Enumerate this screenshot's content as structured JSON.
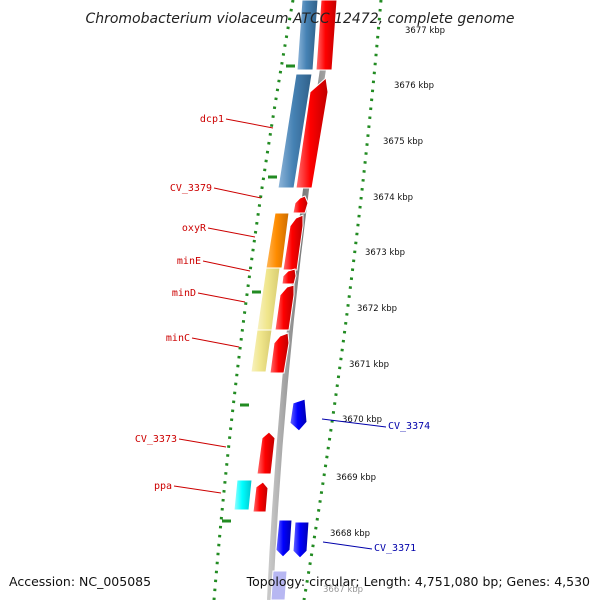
{
  "title": "Chromobacterium violaceum ATCC 12472, complete genome",
  "footer": {
    "accession": "Accession: NC_005085",
    "summary": "Topology: circular; Length: 4,751,080 bp; Genes: 4,530"
  },
  "colors": {
    "forward_gene": "#ff0000",
    "reverse_gene": "#0000ff",
    "group_steelblue": "#4682b4",
    "group_orange": "#ff8c00",
    "group_khaki": "#f0e68c",
    "group_cyan": "#00ffff",
    "backbone": "#888888",
    "tick_marks": "#228b22",
    "left_label": "#cc0000",
    "right_label": "#0000aa"
  },
  "ticks": [
    "3677 kbp",
    "3676 kbp",
    "3675 kbp",
    "3674 kbp",
    "3673 kbp",
    "3672 kbp",
    "3671 kbp",
    "3670 kbp",
    "3669 kbp",
    "3668 kbp",
    "3667 kbp"
  ],
  "left_labels": [
    "dcp1",
    "CV_3379",
    "oxyR",
    "minE",
    "minD",
    "minC",
    "CV_3373",
    "ppa"
  ],
  "right_labels": [
    "CV_3374",
    "CV_3371"
  ]
}
